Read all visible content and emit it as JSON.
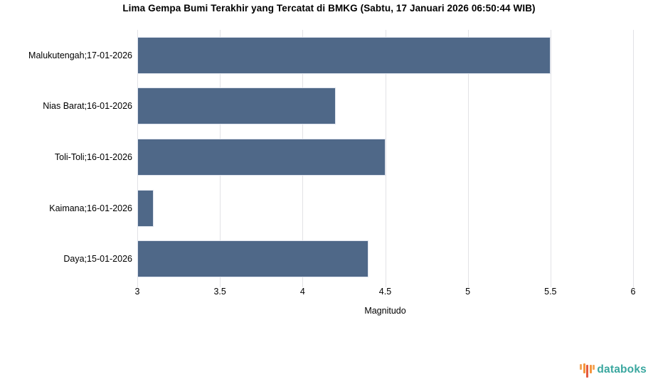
{
  "chart_data": {
    "type": "bar",
    "orientation": "horizontal",
    "title": "Lima Gempa Bumi Terakhir yang Tercatat di BMKG (Sabtu, 17 Januari 2026 06:50:44 WIB)",
    "categories": [
      "Malukutengah;17-01-2026",
      "Nias Barat;16-01-2026",
      "Toli-Toli;16-01-2026",
      "Kaimana;16-01-2026",
      "Daya;15-01-2026"
    ],
    "values": [
      5.5,
      4.2,
      4.5,
      3.1,
      4.4
    ],
    "xlabel": "Magnitudo",
    "ylabel": "",
    "xlim": [
      3,
      6
    ],
    "xticks": [
      "3",
      "3.5",
      "4",
      "4.5",
      "5",
      "5.5",
      "6"
    ],
    "grid": true,
    "legend": false,
    "bar_color": "#4f6888",
    "gridline_color": "#e2e2e6"
  },
  "branding": {
    "logo_text": "databoks",
    "logo_text_color": "#3aa79f",
    "icon_name": "equalizer-bars-icon",
    "icon_bars": [
      {
        "color": "#f2a65a",
        "height": 8,
        "shift": -4
      },
      {
        "color": "#f5953d",
        "height": 14,
        "shift": -2
      },
      {
        "color": "#e4593f",
        "height": 18,
        "shift": 2
      },
      {
        "color": "#f5953d",
        "height": 12,
        "shift": -1
      },
      {
        "color": "#f2a65a",
        "height": 7,
        "shift": -4
      }
    ]
  }
}
